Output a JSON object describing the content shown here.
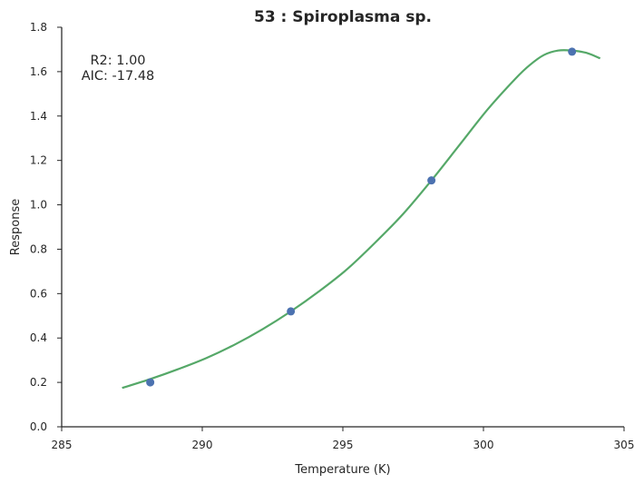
{
  "chart_data": {
    "type": "scatter",
    "title": "53 : Spiroplasma sp.",
    "xlabel": "Temperature (K)",
    "ylabel": "Response",
    "xlim": [
      285,
      305
    ],
    "ylim": [
      0.0,
      1.8
    ],
    "xticks": [
      285,
      290,
      295,
      300,
      305
    ],
    "yticks": [
      0.0,
      0.2,
      0.4,
      0.6,
      0.8,
      1.0,
      1.2,
      1.4,
      1.6,
      1.8
    ],
    "xtick_labels": [
      "285",
      "290",
      "295",
      "300",
      "305"
    ],
    "ytick_labels": [
      "0.0",
      "0.2",
      "0.4",
      "0.6",
      "0.8",
      "1.0",
      "1.2",
      "1.4",
      "1.6",
      "1.8"
    ],
    "annotations": [
      "R2: 1.00",
      "AIC: -17.48"
    ],
    "series": [
      {
        "type": "scatter",
        "color": "#4c72b0",
        "x": [
          288.15,
          293.15,
          298.15,
          303.15
        ],
        "y": [
          0.2,
          0.52,
          1.11,
          1.69
        ]
      },
      {
        "type": "line",
        "color": "#55a868",
        "x": [
          287.15,
          288.15,
          289.15,
          290.15,
          291.15,
          292.15,
          293.15,
          294.15,
          295.15,
          296.15,
          297.15,
          298.15,
          299.15,
          300.15,
          301.15,
          301.65,
          302.15,
          302.65,
          303.15,
          303.65,
          304.15
        ],
        "y": [
          0.175,
          0.215,
          0.26,
          0.31,
          0.37,
          0.44,
          0.52,
          0.61,
          0.71,
          0.83,
          0.96,
          1.11,
          1.27,
          1.43,
          1.57,
          1.63,
          1.675,
          1.695,
          1.695,
          1.685,
          1.66
        ]
      }
    ],
    "grid": false,
    "legend": "none"
  }
}
